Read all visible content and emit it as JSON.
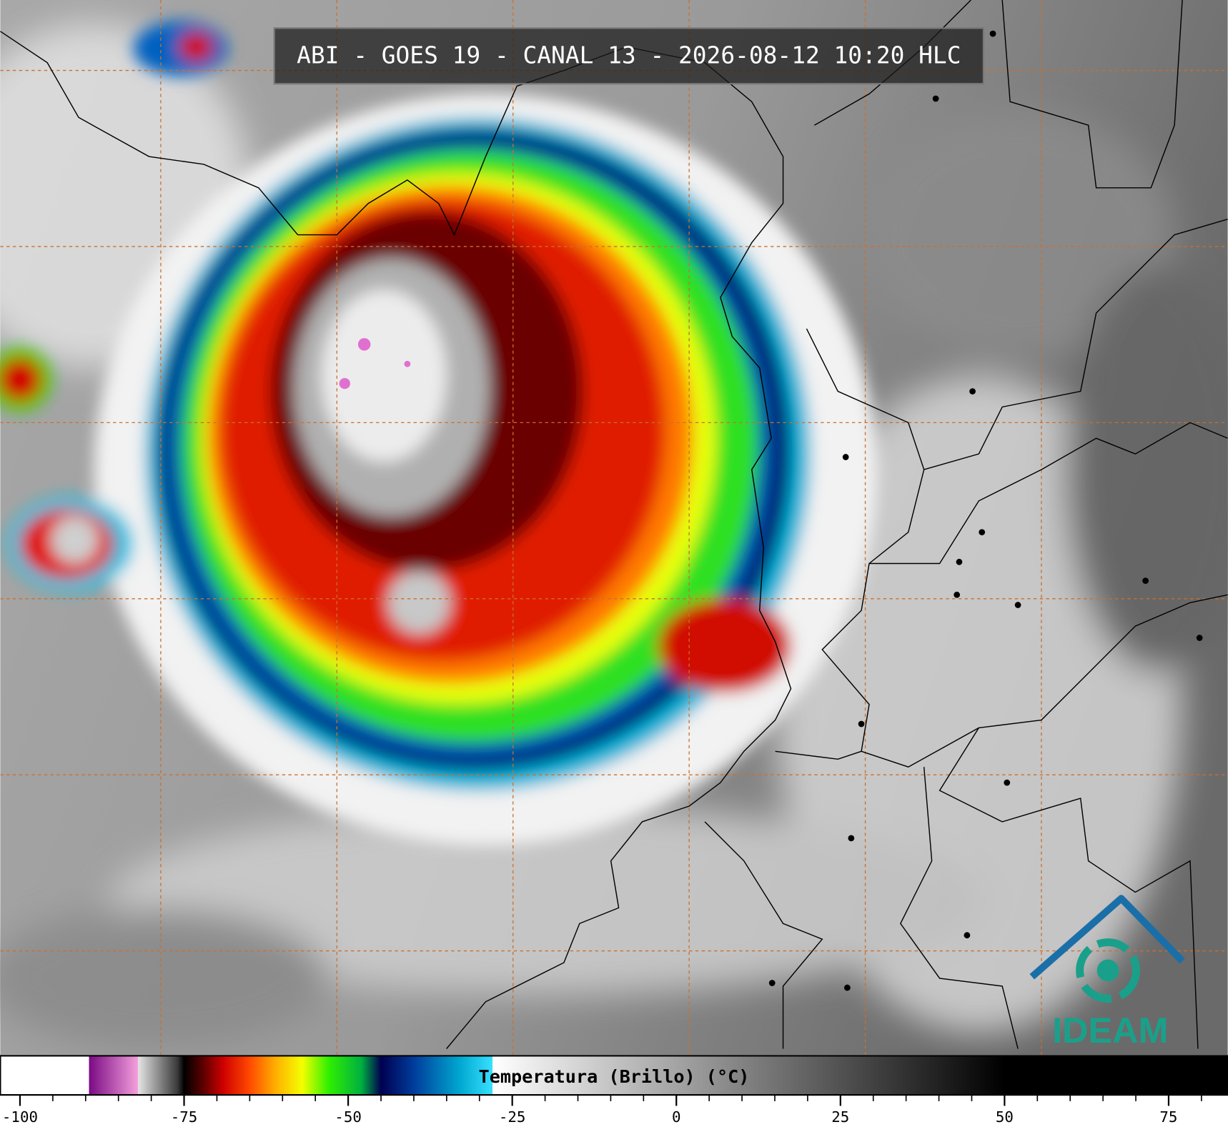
{
  "title": "ABI - GOES 19 - CANAL 13 - 2026-08-12 10:20 HLC",
  "colorbar": {
    "label": "Temperatura (Brillo) (°C)",
    "lim": [
      -103,
      84
    ],
    "ticks": [
      -100,
      -75,
      -50,
      -25,
      0,
      25,
      50,
      75
    ],
    "minor_step": 5,
    "stops": [
      {
        "value": -103,
        "color": "#ffffff"
      },
      {
        "value": -89.5,
        "color": "#ffffff"
      },
      {
        "value": -89.5,
        "color": "#7a0a84"
      },
      {
        "value": -82,
        "color": "#f4a0dc"
      },
      {
        "value": -82,
        "color": "#e4e4e4"
      },
      {
        "value": -76,
        "color": "#3a3a3a"
      },
      {
        "value": -75,
        "color": "#000000"
      },
      {
        "value": -72,
        "color": "#600000"
      },
      {
        "value": -69,
        "color": "#d00000"
      },
      {
        "value": -65,
        "color": "#ff4a00"
      },
      {
        "value": -61,
        "color": "#ffb000"
      },
      {
        "value": -57,
        "color": "#f4ff00"
      },
      {
        "value": -53,
        "color": "#30f000"
      },
      {
        "value": -48,
        "color": "#00b040"
      },
      {
        "value": -45,
        "color": "#000050"
      },
      {
        "value": -40,
        "color": "#003c9c"
      },
      {
        "value": -33,
        "color": "#00a8d0"
      },
      {
        "value": -28,
        "color": "#38e0ff"
      },
      {
        "value": -28,
        "color": "#ffffff"
      },
      {
        "value": 50,
        "color": "#000000"
      },
      {
        "value": 84,
        "color": "#000000"
      }
    ]
  },
  "logo": {
    "text": "IDEAM"
  }
}
